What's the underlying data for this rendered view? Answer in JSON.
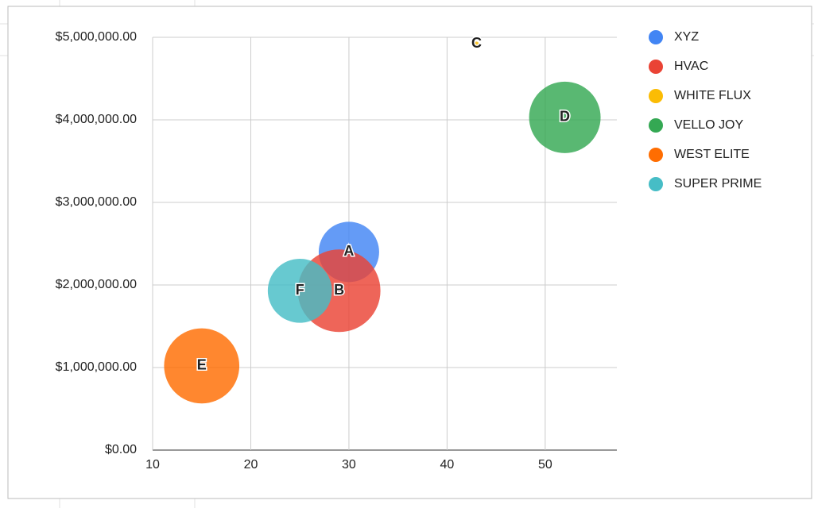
{
  "chart_data": {
    "type": "bubble",
    "series": [
      {
        "name": "XYZ",
        "color": "#4285f4",
        "x": [
          30
        ],
        "values": [
          2400000
        ],
        "sizes": [
          16
        ],
        "labels": [
          "A"
        ]
      },
      {
        "name": "HVAC",
        "color": "#ea4335",
        "x": [
          29
        ],
        "values": [
          1930000
        ],
        "sizes": [
          22
        ],
        "labels": [
          "B"
        ]
      },
      {
        "name": "WHITE FLUX",
        "color": "#fbbc04",
        "x": [
          43
        ],
        "values": [
          4920000
        ],
        "sizes": [
          1
        ],
        "labels": [
          "C"
        ]
      },
      {
        "name": "VELLO JOY",
        "color": "#34a853",
        "x": [
          52
        ],
        "values": [
          4030000
        ],
        "sizes": [
          19
        ],
        "labels": [
          "D"
        ]
      },
      {
        "name": "WEST ELITE",
        "color": "#ff6d01",
        "x": [
          15
        ],
        "values": [
          1020000
        ],
        "sizes": [
          20
        ],
        "labels": [
          "E"
        ]
      },
      {
        "name": "SUPER PRIME",
        "color": "#46bdc6",
        "x": [
          25
        ],
        "values": [
          1930000
        ],
        "sizes": [
          17
        ],
        "labels": [
          "F"
        ]
      }
    ],
    "xlim": [
      10,
      57.3
    ],
    "xticks": [
      10,
      20,
      30,
      40,
      50
    ],
    "ylim": [
      0,
      5000000
    ],
    "yticks": [
      {
        "value": 0,
        "label": "$0.00"
      },
      {
        "value": 1000000,
        "label": "$1,000,000.00"
      },
      {
        "value": 2000000,
        "label": "$2,000,000.00"
      },
      {
        "value": 3000000,
        "label": "$3,000,000.00"
      },
      {
        "value": 4000000,
        "label": "$4,000,000.00"
      },
      {
        "value": 5000000,
        "label": "$5,000,000.00"
      }
    ],
    "grid": true,
    "legend": "right"
  }
}
